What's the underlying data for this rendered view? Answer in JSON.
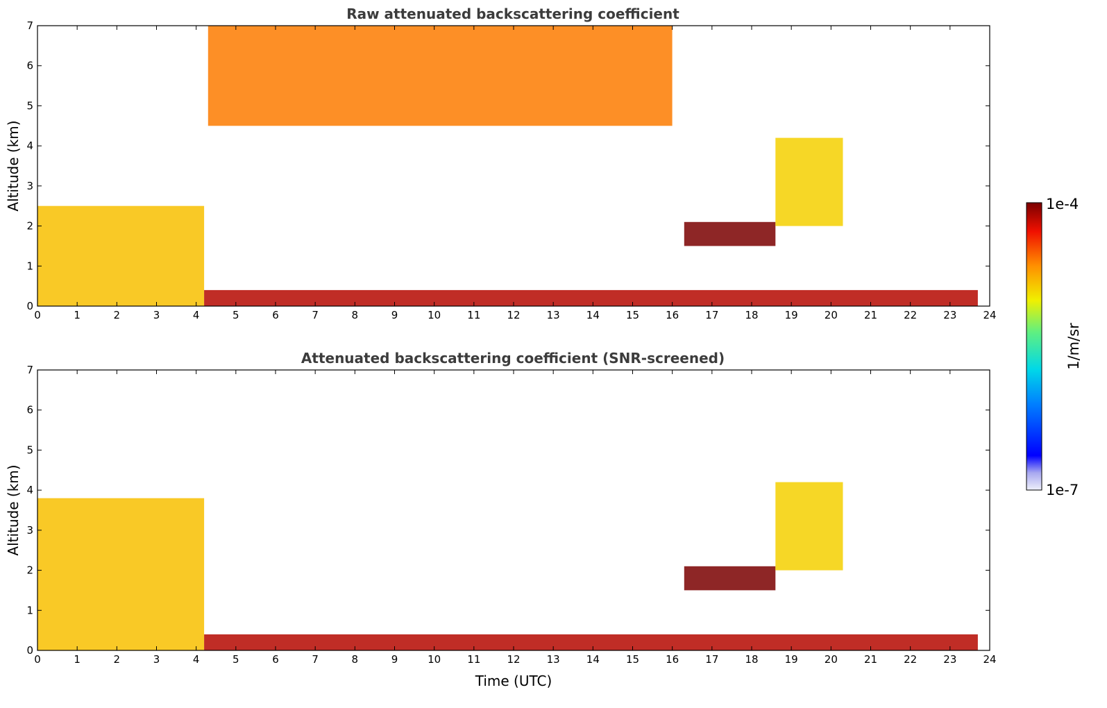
{
  "chart_data": [
    {
      "type": "heatmap",
      "title": "Raw attenuated backscattering coefficient",
      "xlabel": "",
      "ylabel": "Altitude (km)",
      "xlim": [
        0,
        24
      ],
      "ylim": [
        0,
        7
      ],
      "x_ticks": [
        "0",
        "1",
        "2",
        "3",
        "4",
        "5",
        "6",
        "7",
        "8",
        "9",
        "10",
        "11",
        "12",
        "13",
        "14",
        "15",
        "16",
        "17",
        "18",
        "19",
        "20",
        "21",
        "22",
        "23",
        "24"
      ],
      "y_ticks": [
        "0",
        "1",
        "2",
        "3",
        "4",
        "5",
        "6",
        "7"
      ],
      "data_end_time": 23.7,
      "features": [
        {
          "name": "boundary-layer",
          "t0": 0,
          "t1": 4.2,
          "h0": 0,
          "h1": 2.5,
          "level": 0.72
        },
        {
          "name": "high-noise",
          "t0": 4.3,
          "t1": 16,
          "h0": 4.5,
          "h1": 7,
          "level": 0.8
        },
        {
          "name": "cloud-layer",
          "t0": 16.3,
          "t1": 18.6,
          "h0": 1.5,
          "h1": 2.1,
          "level": 1.0
        },
        {
          "name": "cirrus-plume",
          "t0": 18.6,
          "t1": 20.3,
          "h0": 2,
          "h1": 4.2,
          "level": 0.7
        },
        {
          "name": "surface-layer",
          "t0": 4.2,
          "t1": 23.7,
          "h0": 0,
          "h1": 0.4,
          "level": 0.95
        }
      ]
    },
    {
      "type": "heatmap",
      "title": "Attenuated backscattering coefficient (SNR-screened)",
      "xlabel": "Time (UTC)",
      "ylabel": "Altitude (km)",
      "xlim": [
        0,
        24
      ],
      "ylim": [
        0,
        7
      ],
      "x_ticks": [
        "0",
        "1",
        "2",
        "3",
        "4",
        "5",
        "6",
        "7",
        "8",
        "9",
        "10",
        "11",
        "12",
        "13",
        "14",
        "15",
        "16",
        "17",
        "18",
        "19",
        "20",
        "21",
        "22",
        "23",
        "24"
      ],
      "y_ticks": [
        "0",
        "1",
        "2",
        "3",
        "4",
        "5",
        "6",
        "7"
      ],
      "data_end_time": 23.7,
      "features": [
        {
          "name": "boundary-layer",
          "t0": 0,
          "t1": 4.2,
          "h0": 0,
          "h1": 3.8,
          "level": 0.72
        },
        {
          "name": "cloud-layer",
          "t0": 16.3,
          "t1": 18.6,
          "h0": 1.5,
          "h1": 2.1,
          "level": 1.0
        },
        {
          "name": "cirrus-plume",
          "t0": 18.6,
          "t1": 20.3,
          "h0": 2,
          "h1": 4.2,
          "level": 0.7
        },
        {
          "name": "surface-layer",
          "t0": 4.2,
          "t1": 23.7,
          "h0": 0,
          "h1": 0.4,
          "level": 0.95
        }
      ]
    }
  ],
  "colorbar": {
    "label": "1/m/sr",
    "max_label": "1e-4",
    "min_label": "1e-7",
    "scale": "log",
    "range": [
      1e-07,
      0.0001
    ]
  }
}
